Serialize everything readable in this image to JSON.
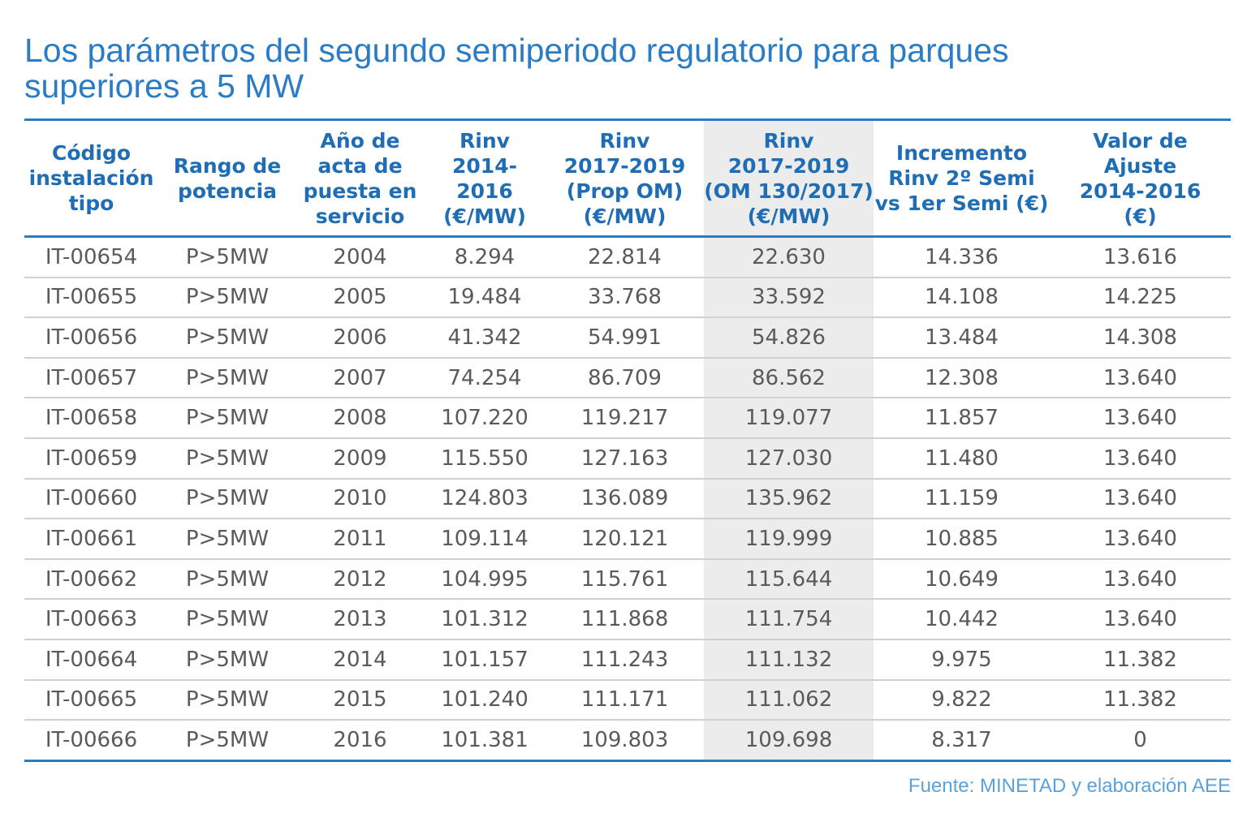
{
  "title": [
    "Los parámetros del segundo semiperiodo regulatorio para parques",
    "superiores a 5 MW"
  ],
  "table": {
    "header": [
      [
        "Código",
        "instalación",
        "tipo"
      ],
      [
        "Rango de",
        "potencia"
      ],
      [
        "Año de",
        "acta de",
        "puesta en",
        "servicio"
      ],
      [
        "Rinv",
        "2014-",
        "2016",
        "(€/MW)"
      ],
      [
        "Rinv",
        "2017-2019",
        "(Prop OM)",
        "(€/MW)"
      ],
      [
        "Rinv",
        "2017-2019",
        "(OM 130/2017)",
        "(€/MW)"
      ],
      [
        "Incremento",
        "Rinv 2º Semi",
        "vs 1er Semi (€)"
      ],
      [
        "Valor de",
        "Ajuste",
        "2014-2016",
        "(€)"
      ]
    ],
    "rows": [
      [
        "IT-00654",
        "P>5MW",
        "2004",
        "8.294",
        "22.814",
        "22.630",
        "14.336",
        "13.616"
      ],
      [
        "IT-00655",
        "P>5MW",
        "2005",
        "19.484",
        "33.768",
        "33.592",
        "14.108",
        "14.225"
      ],
      [
        "IT-00656",
        "P>5MW",
        "2006",
        "41.342",
        "54.991",
        "54.826",
        "13.484",
        "14.308"
      ],
      [
        "IT-00657",
        "P>5MW",
        "2007",
        "74.254",
        "86.709",
        "86.562",
        "12.308",
        "13.640"
      ],
      [
        "IT-00658",
        "P>5MW",
        "2008",
        "107.220",
        "119.217",
        "119.077",
        "11.857",
        "13.640"
      ],
      [
        "IT-00659",
        "P>5MW",
        "2009",
        "115.550",
        "127.163",
        "127.030",
        "11.480",
        "13.640"
      ],
      [
        "IT-00660",
        "P>5MW",
        "2010",
        "124.803",
        "136.089",
        "135.962",
        "11.159",
        "13.640"
      ],
      [
        "IT-00661",
        "P>5MW",
        "2011",
        "109.114",
        "120.121",
        "119.999",
        "10.885",
        "13.640"
      ],
      [
        "IT-00662",
        "P>5MW",
        "2012",
        "104.995",
        "115.761",
        "115.644",
        "10.649",
        "13.640"
      ],
      [
        "IT-00663",
        "P>5MW",
        "2013",
        "101.312",
        "111.868",
        "111.754",
        "10.442",
        "13.640"
      ],
      [
        "IT-00664",
        "P>5MW",
        "2014",
        "101.157",
        "111.243",
        "111.132",
        "9.975",
        "11.382"
      ],
      [
        "IT-00665",
        "P>5MW",
        "2015",
        "101.240",
        "111.171",
        "111.062",
        "9.822",
        "11.382"
      ],
      [
        "IT-00666",
        "P>5MW",
        "2016",
        "101.381",
        "109.803",
        "109.698",
        "8.317",
        "0"
      ]
    ]
  },
  "source": "Fuente: MINETAD y elaboración AEE"
}
